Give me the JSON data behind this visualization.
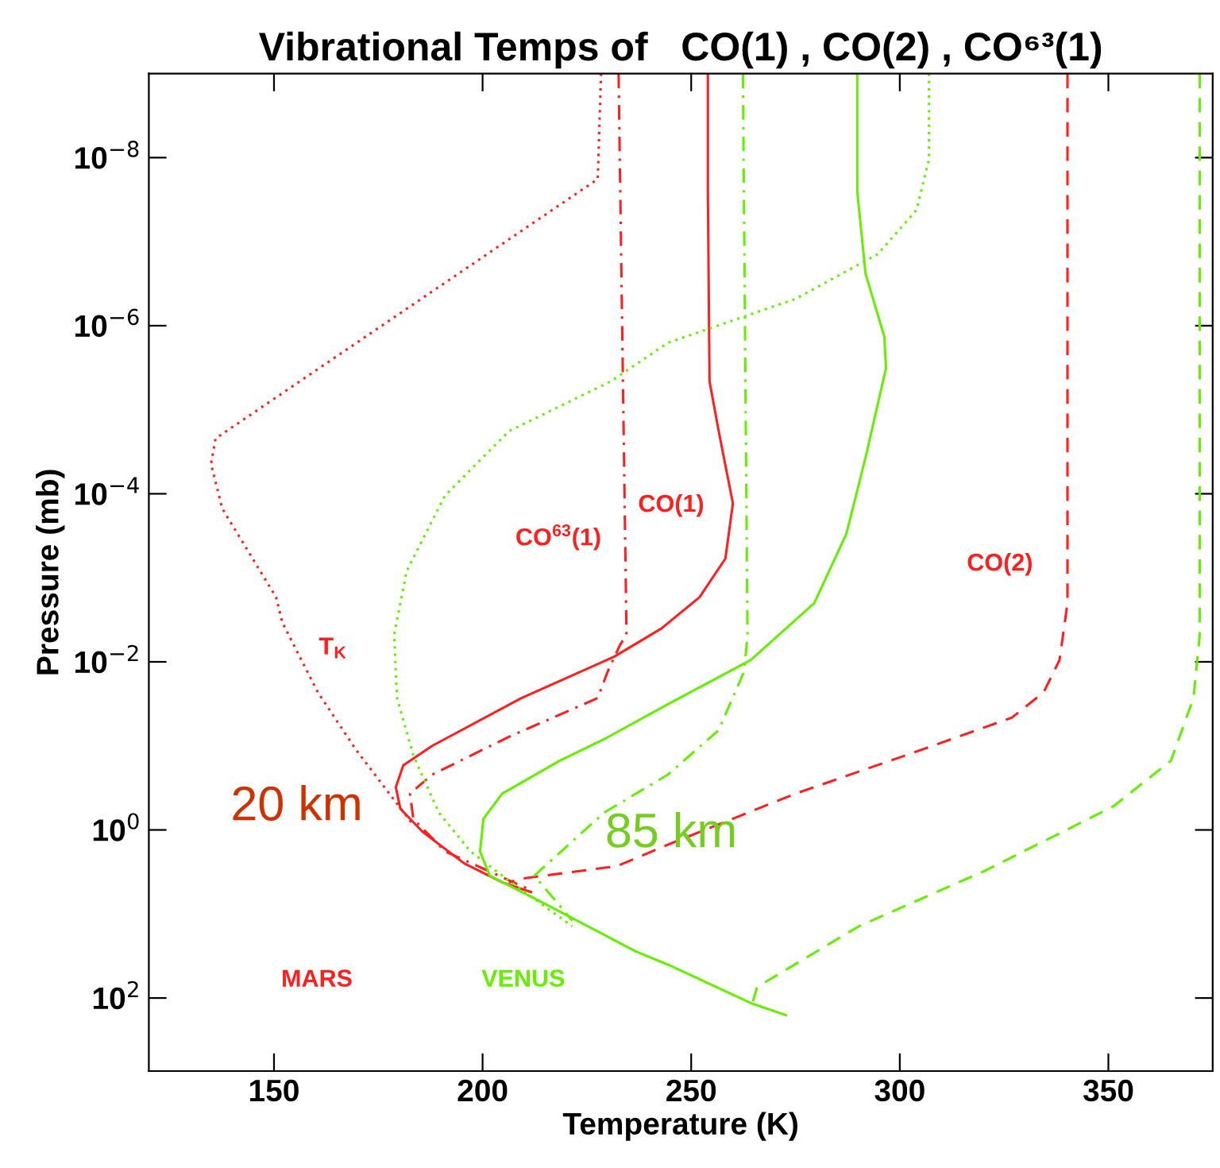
{
  "chart_data": {
    "type": "line",
    "title": "Vibrational Temps of   CO(1) , CO(2) , CO⁶³(1)",
    "xlabel": "Temperature (K)",
    "ylabel": "Pressure (mb)",
    "log": "y",
    "grid": false,
    "marker": "none",
    "xlim": [
      120,
      375
    ],
    "xticks": [
      150,
      200,
      250,
      300,
      350
    ],
    "ylim": [
      740,
      1e-09
    ],
    "yticks": [
      {
        "value": 1e-08,
        "label": "10$^{−8}$"
      },
      {
        "value": 1e-06,
        "label": "10$^{−6}$"
      },
      {
        "value": 0.0001,
        "label": "10$^{−4}$"
      },
      {
        "value": 0.01,
        "label": "10$^{−2}$"
      },
      {
        "value": 1,
        "label": "10$^{0}$"
      },
      {
        "value": 100,
        "label": "10$^{2}$"
      }
    ],
    "series": [
      {
        "color": "#ff2020",
        "line_style": "dotted",
        "x": [
          228.4,
          227.6,
          136,
          134.9,
          137.6,
          150.5,
          152,
          160.5,
          169.6,
          178.8,
          183.4
        ],
        "values": [
          1e-09,
          1.8e-08,
          2.2e-05,
          4.4e-05,
          0.00015,
          0.0017,
          0.0034,
          0.023,
          0.11,
          0.44,
          0.87
        ]
      },
      {
        "color": "#ff2020",
        "line_style": "solid",
        "x": [
          254,
          254,
          254.4,
          256.6,
          260,
          258.2,
          252,
          242.9,
          231.5,
          209.3,
          187.9,
          181,
          179.2,
          180.3,
          185.6,
          195.6,
          204.7,
          211.6
        ],
        "values": [
          1e-09,
          2.5e-08,
          4.6e-06,
          1.8e-05,
          0.00013,
          0.00059,
          0.0017,
          0.004,
          0.0087,
          0.027,
          0.1,
          0.17,
          0.31,
          0.56,
          1.05,
          2.5,
          4.2,
          5.5
        ]
      },
      {
        "color": "#ff2020",
        "line_style": "dashdot",
        "x": [
          232.6,
          234.5,
          233,
          230,
          227.6,
          206.3,
          187.9,
          182.6,
          183.4,
          191,
          210.8
        ],
        "values": [
          1e-09,
          0.0048,
          0.0062,
          0.013,
          0.027,
          0.078,
          0.22,
          0.37,
          0.74,
          1.8,
          5.0
        ]
      },
      {
        "color": "#ff2020",
        "line_style": "dashed",
        "x": [
          340.2,
          340.2,
          338.3,
          334.5,
          326.9,
          305.5,
          275,
          244.4,
          232.2,
          209.3,
          206.3
        ],
        "values": [
          1e-09,
          0.002,
          0.0095,
          0.023,
          0.046,
          0.11,
          0.37,
          1.5,
          2.7,
          3.8,
          4.2
        ]
      },
      {
        "color": "#66ee00",
        "line_style": "dotted",
        "x": [
          307,
          307,
          304,
          294.8,
          275,
          244.4,
          230.7,
          206.3,
          191,
          181.8,
          178.8,
          179.5,
          183.4,
          189.5,
          197.1,
          204.7,
          221.5
        ],
        "values": [
          1e-09,
          1.05e-08,
          4.2e-08,
          1.4e-07,
          4.8e-07,
          1.6e-06,
          4.6e-06,
          1.8e-05,
          0.000105,
          0.00083,
          0.0048,
          0.027,
          0.13,
          0.62,
          1.8,
          3.5,
          14
        ]
      },
      {
        "color": "#66ee00",
        "line_style": "solid",
        "x": [
          289.8,
          289.8,
          291.8,
          296.3,
          296.7,
          291.8,
          287.2,
          279.5,
          264.3,
          244.4,
          229.2,
          218.5,
          204.7,
          200.2,
          199.4,
          201.7,
          213.9,
          236.8,
          244.4,
          264.3,
          272.7
        ],
        "values": [
          1e-09,
          2.5e-08,
          2.4e-07,
          1.35e-06,
          3.2e-06,
          3.7e-05,
          0.0003,
          0.002,
          0.0095,
          0.032,
          0.083,
          0.15,
          0.37,
          0.74,
          1.8,
          3.5,
          7.1,
          28,
          40,
          115,
          160
        ]
      },
      {
        "color": "#66ee00",
        "line_style": "dashdot",
        "x": [
          262.4,
          263.5,
          262.7,
          256.6,
          244.4,
          229.2,
          212.4,
          221.5
        ],
        "values": [
          1e-09,
          0.0048,
          0.013,
          0.065,
          0.22,
          0.62,
          3.5,
          12
        ]
      },
      {
        "color": "#66ee00",
        "line_style": "dashed",
        "x": [
          371.9,
          371.9,
          370.4,
          365,
          351.3,
          320.8,
          290.2,
          265.8,
          264.7
        ],
        "values": [
          1e-09,
          0.0048,
          0.027,
          0.15,
          0.52,
          3.0,
          14,
          74,
          115
        ]
      }
    ],
    "annotations": [
      "CO$^{63}$(1)",
      "CO(1)",
      "CO(2)",
      "T$_{K}$",
      "20 km",
      "85 km",
      "MARS",
      "VENUS"
    ]
  }
}
